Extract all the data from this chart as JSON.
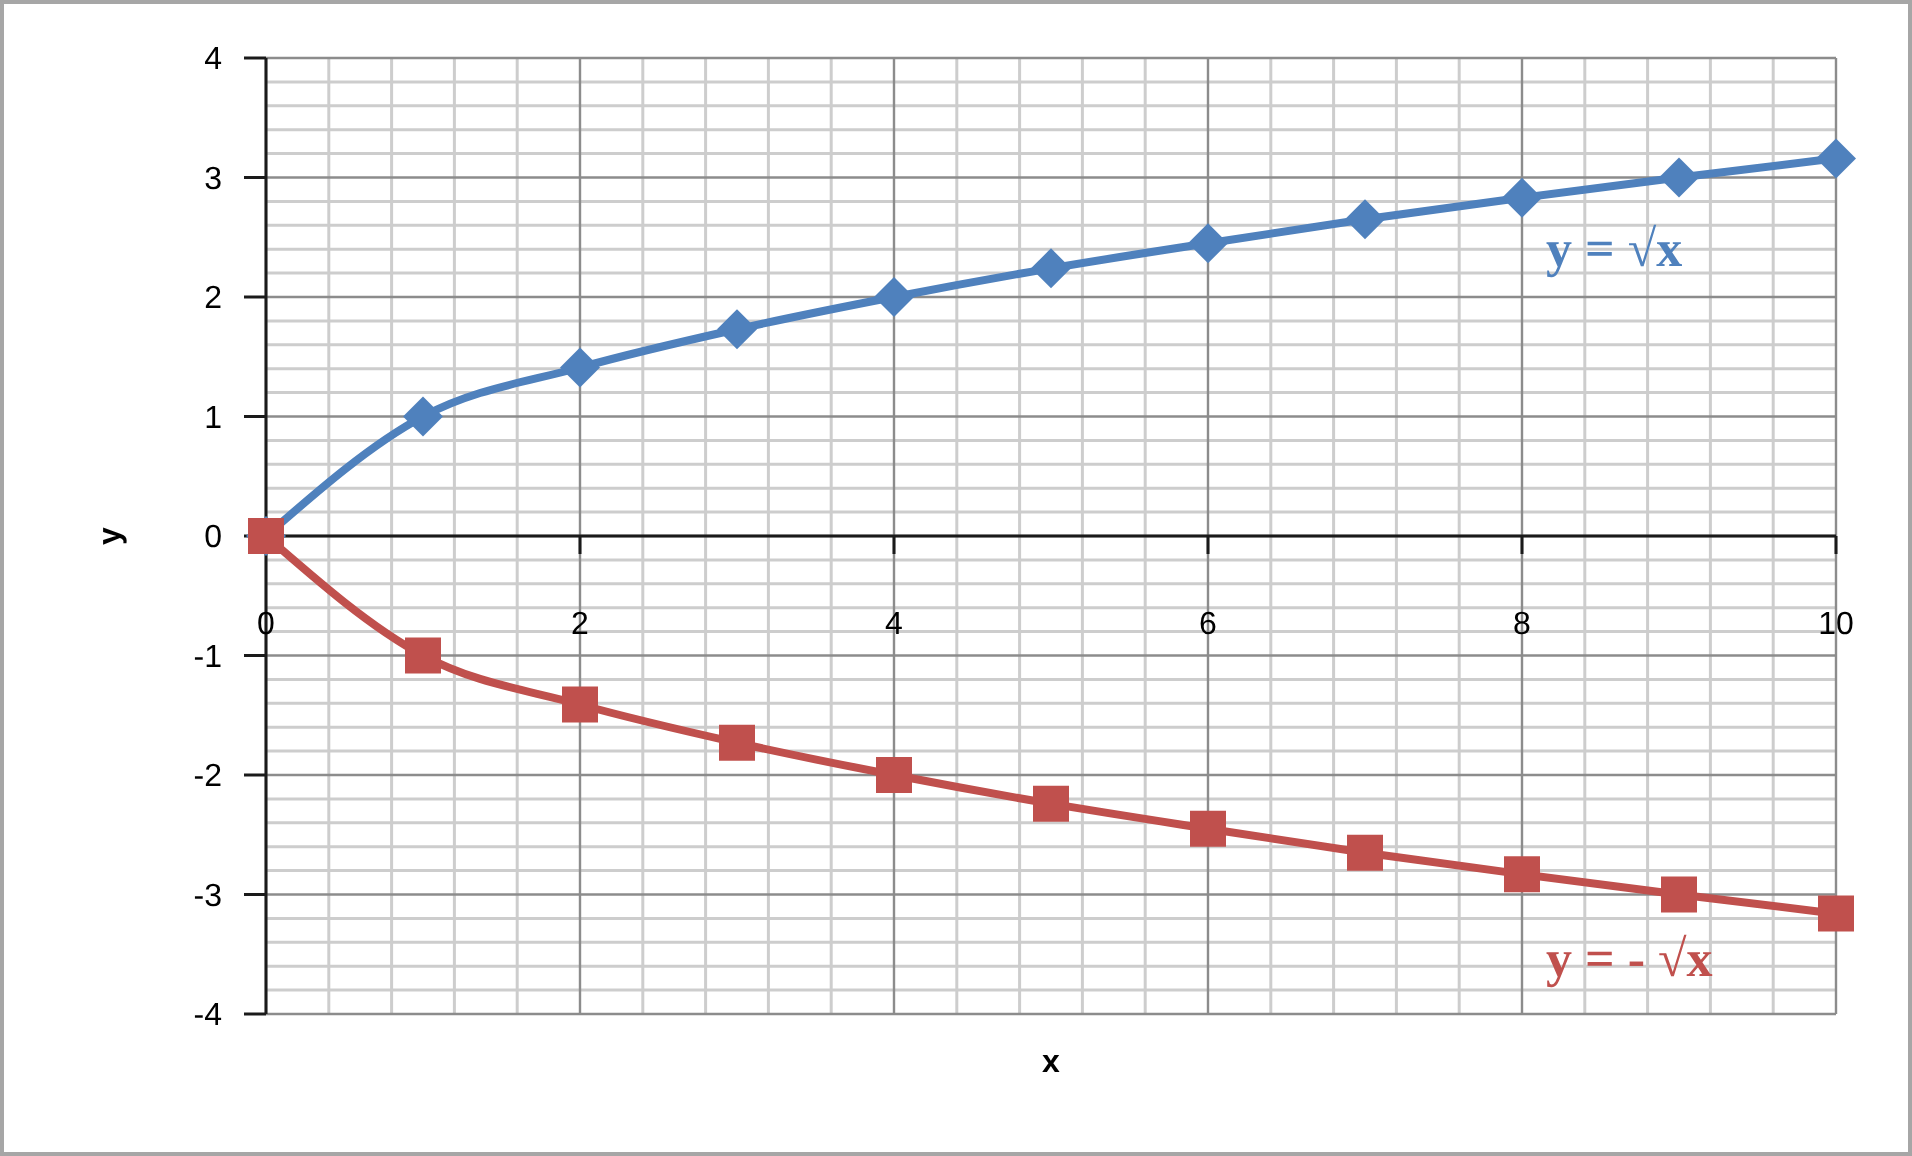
{
  "chart_data": {
    "type": "line",
    "xlabel": "x",
    "ylabel": "y",
    "x": [
      0,
      1,
      2,
      3,
      4,
      5,
      6,
      7,
      8,
      9,
      10
    ],
    "xlim": [
      0,
      10
    ],
    "ylim": [
      -4,
      4
    ],
    "xticks": [
      0,
      2,
      4,
      6,
      8,
      10
    ],
    "yticks": [
      -4,
      -3,
      -2,
      -1,
      0,
      1,
      2,
      3,
      4
    ],
    "grid": true,
    "line_style": "solid",
    "series": [
      {
        "name": "y = √x",
        "color": "#4f81bd",
        "marker": "diamond",
        "values": [
          0,
          1,
          1.41,
          1.73,
          2,
          2.24,
          2.45,
          2.65,
          2.83,
          3,
          3.16
        ]
      },
      {
        "name": "y = - √x",
        "color": "#c0504d",
        "marker": "square",
        "values": [
          0,
          -1,
          -1.41,
          -1.73,
          -2,
          -2.24,
          -2.45,
          -2.65,
          -2.83,
          -3,
          -3.16
        ]
      }
    ]
  }
}
